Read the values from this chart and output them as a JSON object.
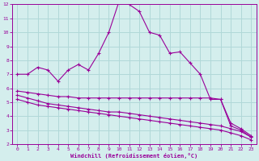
{
  "x": [
    0,
    1,
    2,
    3,
    4,
    5,
    6,
    7,
    8,
    9,
    10,
    11,
    12,
    13,
    14,
    15,
    16,
    17,
    18,
    19,
    20,
    21,
    22,
    23
  ],
  "line1": [
    7.0,
    7.0,
    7.5,
    7.3,
    6.5,
    7.3,
    7.7,
    7.3,
    8.5,
    10.0,
    12.2,
    12.0,
    11.5,
    10.0,
    9.8,
    8.5,
    8.6,
    7.8,
    7.0,
    5.2,
    5.2,
    3.3,
    3.0,
    2.5
  ],
  "line2": [
    5.8,
    5.7,
    5.6,
    5.5,
    5.4,
    5.4,
    5.3,
    5.3,
    5.3,
    5.3,
    5.3,
    5.3,
    5.3,
    5.3,
    5.3,
    5.3,
    5.3,
    5.3,
    5.3,
    5.3,
    5.2,
    3.5,
    3.1,
    2.6
  ],
  "line3": [
    5.5,
    5.3,
    5.1,
    4.9,
    4.8,
    4.7,
    4.6,
    4.5,
    4.4,
    4.3,
    4.3,
    4.2,
    4.1,
    4.0,
    3.9,
    3.8,
    3.7,
    3.6,
    3.5,
    3.4,
    3.3,
    3.1,
    2.9,
    2.5
  ],
  "line4": [
    5.2,
    5.0,
    4.8,
    4.7,
    4.6,
    4.5,
    4.4,
    4.3,
    4.2,
    4.1,
    4.0,
    3.9,
    3.8,
    3.7,
    3.6,
    3.5,
    3.4,
    3.3,
    3.2,
    3.1,
    3.0,
    2.8,
    2.6,
    2.3
  ],
  "color": "#990099",
  "bg_color": "#d4eeed",
  "grid_color": "#b0d8d8",
  "xlabel": "Windchill (Refroidissement éolien,°C)",
  "xlim": [
    -0.5,
    23.5
  ],
  "ylim": [
    2,
    12
  ],
  "yticks": [
    2,
    3,
    4,
    5,
    6,
    7,
    8,
    9,
    10,
    11,
    12
  ],
  "xticks": [
    0,
    1,
    2,
    3,
    4,
    5,
    6,
    7,
    8,
    9,
    10,
    11,
    12,
    13,
    14,
    15,
    16,
    17,
    18,
    19,
    20,
    21,
    22,
    23
  ]
}
